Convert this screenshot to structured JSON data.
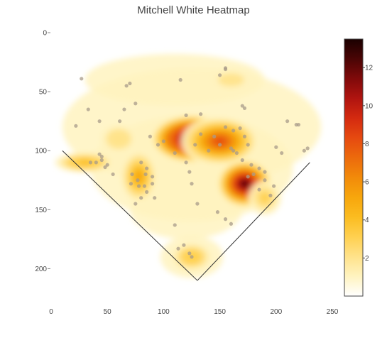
{
  "chart_data": {
    "type": "heatmap",
    "title": "Mitchell White Heatmap",
    "xlabel": "",
    "ylabel": "",
    "xlim": [
      0,
      250
    ],
    "ylim": [
      225,
      0
    ],
    "x_ticks": [
      "0",
      "50",
      "100",
      "150",
      "200",
      "250"
    ],
    "y_ticks": [
      "0",
      "50",
      "100",
      "150",
      "200"
    ],
    "colorbar": {
      "min": 0,
      "max": 13.5,
      "ticks": [
        "2",
        "4",
        "6",
        "8",
        "10",
        "12"
      ],
      "colors": [
        "#ffffff",
        "#fff3c0",
        "#ffe28a",
        "#ffd050",
        "#fbbc20",
        "#f7a60c",
        "#f28a0a",
        "#ec6a0c",
        "#e64a10",
        "#d42a10",
        "#b01410",
        "#800a0a",
        "#4a0505",
        "#1a0000"
      ]
    },
    "field_lines": [
      {
        "name": "left-foul-line",
        "from": [
          10,
          100
        ],
        "to": [
          130,
          210
        ]
      },
      {
        "name": "right-foul-line",
        "from": [
          130,
          210
        ],
        "to": [
          230,
          110
        ]
      }
    ],
    "density_peaks": [
      {
        "x": 125,
        "y": 90,
        "value": 13.5
      },
      {
        "x": 172,
        "y": 128,
        "value": 12
      },
      {
        "x": 150,
        "y": 92,
        "value": 8
      },
      {
        "x": 78,
        "y": 122,
        "value": 5
      },
      {
        "x": 30,
        "y": 110,
        "value": 4.5
      },
      {
        "x": 125,
        "y": 190,
        "value": 3.5
      },
      {
        "x": 190,
        "y": 140,
        "value": 3
      },
      {
        "x": 60,
        "y": 90,
        "value": 2.5
      },
      {
        "x": 160,
        "y": 40,
        "value": 2
      }
    ],
    "points": [
      [
        27,
        39
      ],
      [
        33,
        65
      ],
      [
        22,
        79
      ],
      [
        43,
        75
      ],
      [
        67,
        45
      ],
      [
        70,
        43
      ],
      [
        65,
        65
      ],
      [
        75,
        60
      ],
      [
        61,
        75
      ],
      [
        115,
        40
      ],
      [
        150,
        36
      ],
      [
        155,
        31
      ],
      [
        155,
        30
      ],
      [
        170,
        62
      ],
      [
        172,
        64
      ],
      [
        120,
        70
      ],
      [
        133,
        69
      ],
      [
        210,
        75
      ],
      [
        218,
        78
      ],
      [
        220,
        78
      ],
      [
        228,
        98
      ],
      [
        225,
        100
      ],
      [
        200,
        97
      ],
      [
        205,
        102
      ],
      [
        35,
        110
      ],
      [
        40,
        110
      ],
      [
        45,
        108
      ],
      [
        50,
        112
      ],
      [
        48,
        114
      ],
      [
        55,
        120
      ],
      [
        43,
        103
      ],
      [
        45,
        105
      ],
      [
        88,
        88
      ],
      [
        95,
        95
      ],
      [
        100,
        92
      ],
      [
        110,
        102
      ],
      [
        80,
        110
      ],
      [
        85,
        115
      ],
      [
        72,
        120
      ],
      [
        77,
        125
      ],
      [
        84,
        120
      ],
      [
        90,
        122
      ],
      [
        83,
        130
      ],
      [
        90,
        128
      ],
      [
        85,
        135
      ],
      [
        80,
        140
      ],
      [
        92,
        140
      ],
      [
        75,
        145
      ],
      [
        78,
        130
      ],
      [
        71,
        128
      ],
      [
        120,
        110
      ],
      [
        123,
        118
      ],
      [
        125,
        128
      ],
      [
        140,
        100
      ],
      [
        150,
        95
      ],
      [
        160,
        98
      ],
      [
        162,
        83
      ],
      [
        168,
        81
      ],
      [
        155,
        80
      ],
      [
        172,
        88
      ],
      [
        175,
        95
      ],
      [
        162,
        100
      ],
      [
        165,
        102
      ],
      [
        170,
        108
      ],
      [
        178,
        112
      ],
      [
        185,
        115
      ],
      [
        190,
        118
      ],
      [
        180,
        120
      ],
      [
        175,
        122
      ],
      [
        190,
        125
      ],
      [
        198,
        130
      ],
      [
        195,
        138
      ],
      [
        185,
        133
      ],
      [
        130,
        145
      ],
      [
        148,
        152
      ],
      [
        155,
        158
      ],
      [
        160,
        162
      ],
      [
        110,
        163
      ],
      [
        113,
        183
      ],
      [
        118,
        180
      ],
      [
        123,
        187
      ],
      [
        125,
        190
      ],
      [
        128,
        95
      ],
      [
        145,
        88
      ],
      [
        133,
        86
      ]
    ]
  }
}
